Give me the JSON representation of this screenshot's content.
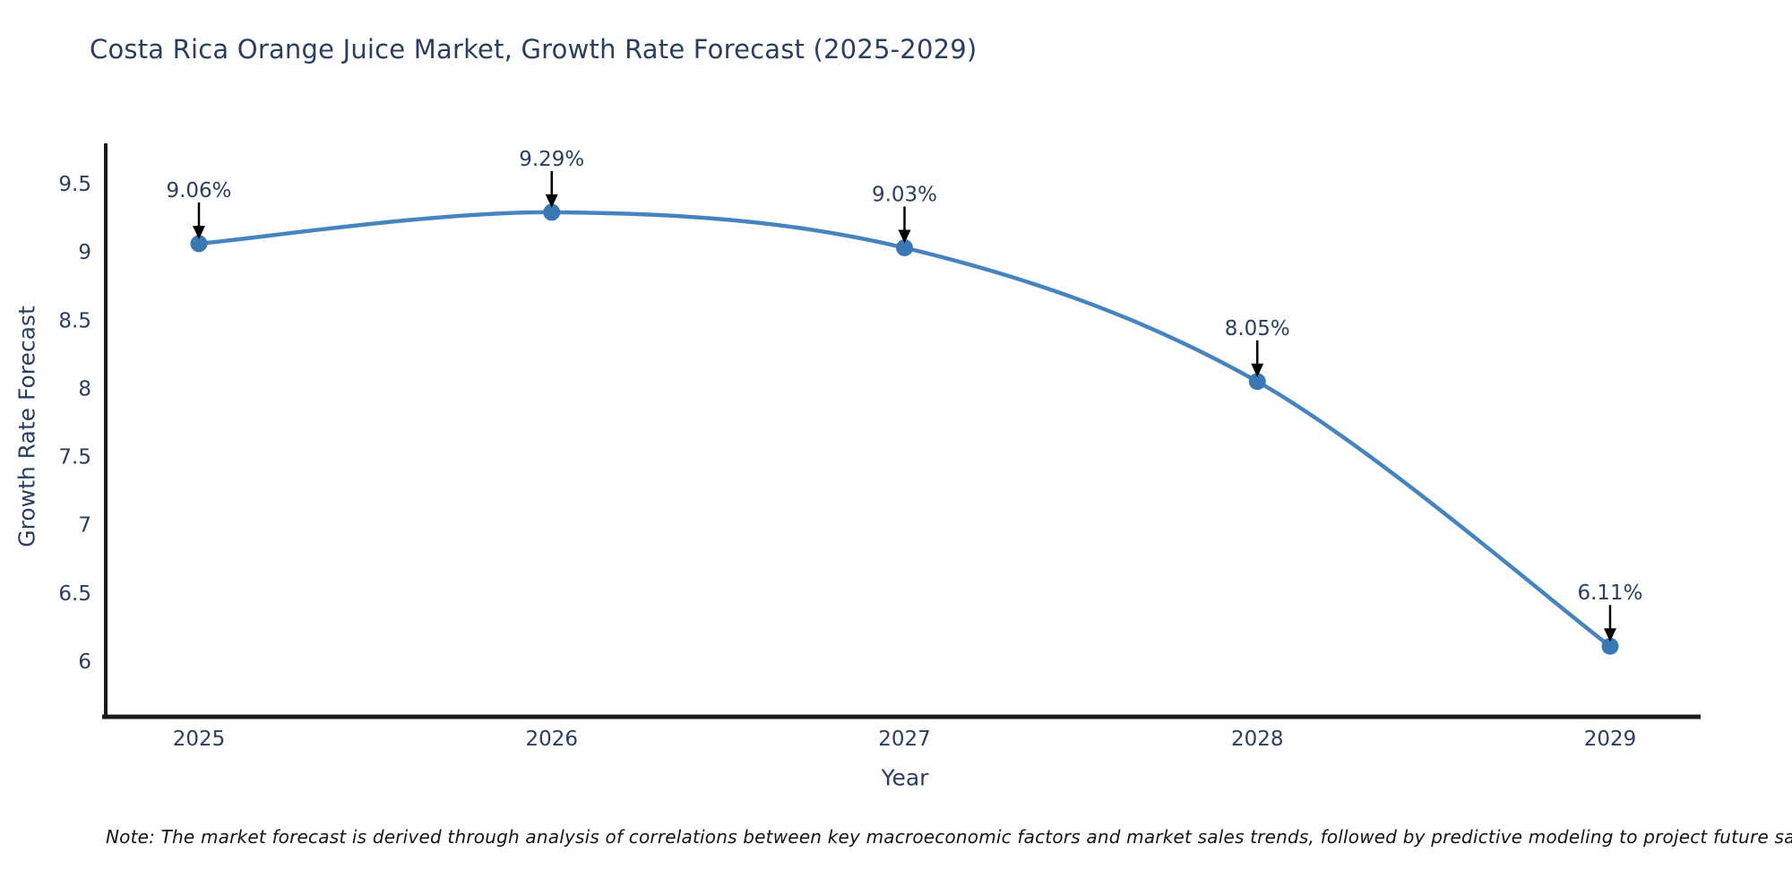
{
  "chart_data": {
    "type": "line",
    "title": "Costa Rica Orange Juice Market, Growth Rate Forecast (2025-2029)",
    "x_categories": [
      "2025",
      "2026",
      "2027",
      "2028",
      "2029"
    ],
    "series": [
      {
        "name": "Growth Rate Forecast",
        "values": [
          9.06,
          9.29,
          9.03,
          8.05,
          6.11
        ]
      }
    ],
    "point_labels": [
      "9.06%",
      "9.29%",
      "9.03%",
      "8.05%",
      "6.11%"
    ],
    "xlabel": "Year",
    "ylabel": "Growth Rate Forecast",
    "yticks": [
      9.5,
      9,
      8.5,
      8,
      7.5,
      7,
      6.5,
      6
    ],
    "ytick_labels": [
      "9.5",
      "9",
      "8.5",
      "8",
      "7.5",
      "7",
      "6.5",
      "6"
    ],
    "ylim": [
      5.6,
      9.8
    ],
    "line_shape": "spline",
    "grid": false,
    "legend_position": "none",
    "annotation_style": "black-arrow-pointing-down-to-point",
    "colors": {
      "line": "#4684bf",
      "marker": "#3a78b5",
      "arrow": "#000000",
      "text": "#2a3f5f",
      "axis": "#1a1a1a",
      "note_text": "#141414",
      "background": "#ffffff"
    }
  },
  "footnote": "Note: The market forecast is derived through analysis of correlations between key macroeconomic factors and market sales trends, followed by predictive modeling to project future sales"
}
